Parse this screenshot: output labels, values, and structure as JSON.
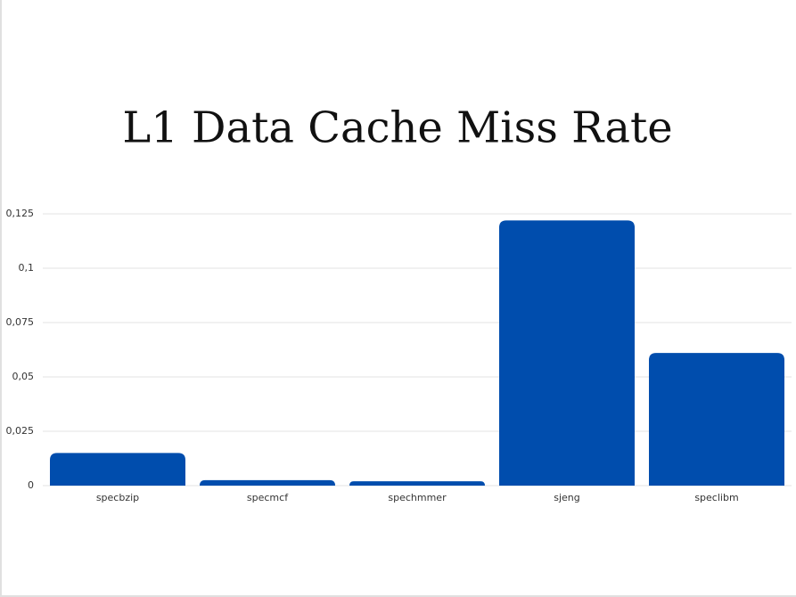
{
  "chart_data": {
    "type": "bar",
    "title": "L1 Data Cache Miss Rate",
    "categories": [
      "specbzip",
      "specmcf",
      "spechmmer",
      "sjeng",
      "speclibm"
    ],
    "values": [
      0.015,
      0.0025,
      0.002,
      0.122,
      0.061
    ],
    "color": "#004dad",
    "ylim": [
      0,
      0.125
    ],
    "yticks": [
      0,
      {
        "value": 0.025,
        "label": "0,025"
      },
      {
        "value": 0.05,
        "label": "0,05"
      },
      {
        "value": 0.075,
        "label": "0,075"
      },
      {
        "value": 0.1,
        "label": "0,1"
      },
      {
        "value": 0.125,
        "label": "0,125"
      }
    ],
    "grid": true
  }
}
